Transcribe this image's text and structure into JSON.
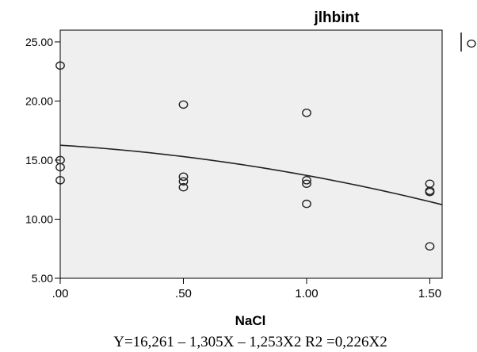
{
  "chart_data": {
    "type": "scatter",
    "title": "jlhbint",
    "xlabel": "NaCl",
    "ylabel": "",
    "xlim": [
      0,
      1.55
    ],
    "ylim": [
      5,
      26
    ],
    "x_ticks": [
      0,
      0.5,
      1.0,
      1.5
    ],
    "x_tick_labels": [
      ".00",
      ".50",
      "1.00",
      "1.50"
    ],
    "y_ticks": [
      5,
      10,
      15,
      20,
      25
    ],
    "y_tick_labels": [
      "5.00",
      "10.00",
      "15.00",
      "20.00",
      "25.00"
    ],
    "grid": false,
    "legend": "top-right",
    "series": [
      {
        "marker": "open-circle",
        "points": [
          {
            "x": 0,
            "y": 23.0
          },
          {
            "x": 0,
            "y": 15.0
          },
          {
            "x": 0,
            "y": 14.4
          },
          {
            "x": 0,
            "y": 13.3
          },
          {
            "x": 0.5,
            "y": 19.7
          },
          {
            "x": 0.5,
            "y": 13.6
          },
          {
            "x": 0.5,
            "y": 13.2
          },
          {
            "x": 0.5,
            "y": 12.7
          },
          {
            "x": 1.0,
            "y": 19.0
          },
          {
            "x": 1.0,
            "y": 13.3
          },
          {
            "x": 1.0,
            "y": 13.0
          },
          {
            "x": 1.0,
            "y": 11.3
          },
          {
            "x": 1.5,
            "y": 13.0
          },
          {
            "x": 1.5,
            "y": 12.4
          },
          {
            "x": 1.5,
            "y": 12.3
          },
          {
            "x": 1.5,
            "y": 7.7
          }
        ]
      },
      {
        "kind": "fit-curve",
        "coefficients": {
          "b0": 16.261,
          "b1": -1.305,
          "b2": -1.253
        }
      }
    ],
    "legend_items": [
      {
        "symbol": "line"
      },
      {
        "symbol": "open-circle"
      }
    ],
    "equation_caption": "Y=16,261 – 1,305X – 1,253X2 R2 =0,226X2"
  },
  "colors": {
    "plot_background": "#efefef",
    "axis": "#000000",
    "marker_stroke": "#222222",
    "curve": "#222222",
    "page_background": "#ffffff"
  }
}
